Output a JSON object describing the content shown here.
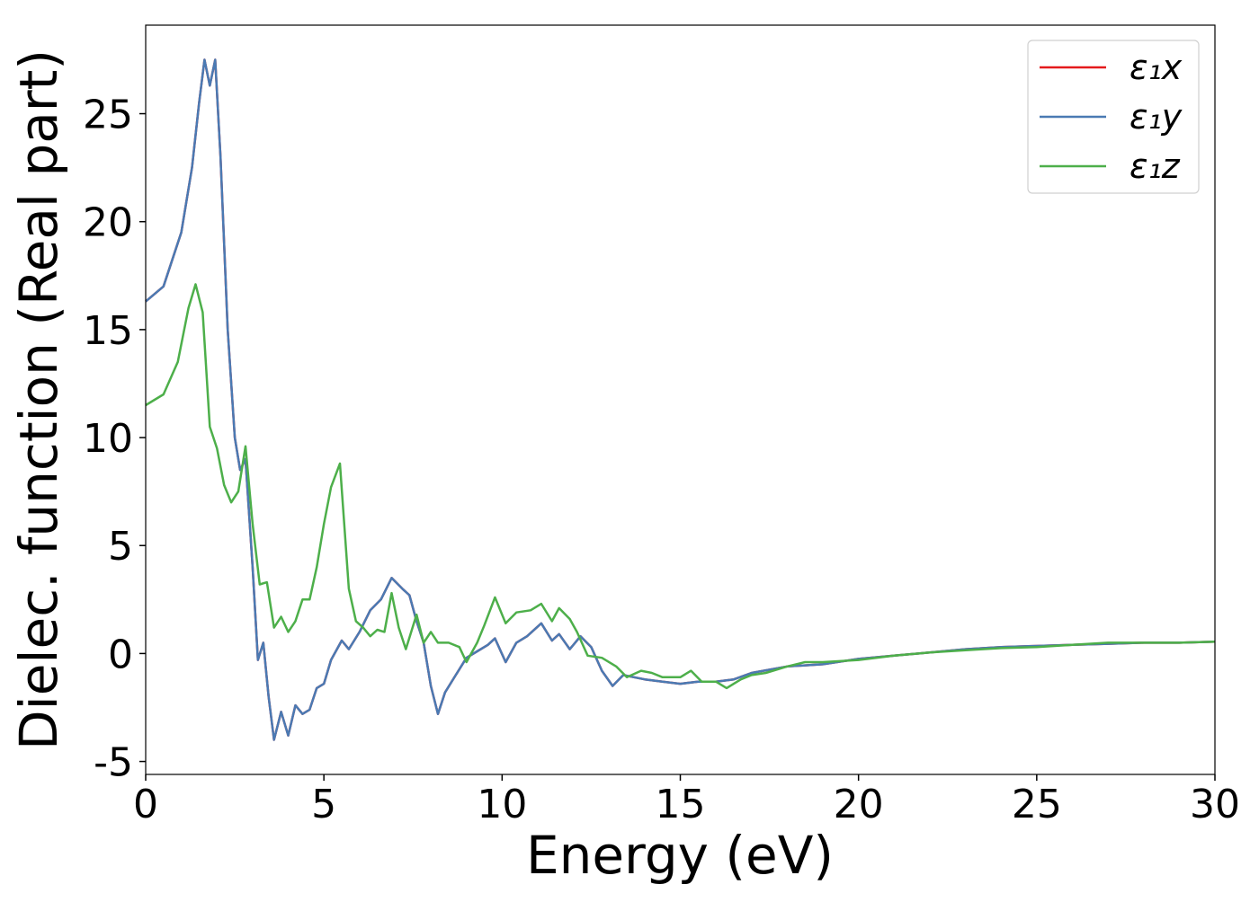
{
  "chart_data": {
    "type": "line",
    "xlabel": "Energy (eV)",
    "ylabel": "Dielec. function (Real part)",
    "xlim": [
      0,
      30
    ],
    "ylim": [
      -5.6,
      29.1
    ],
    "xticks": [
      0,
      5,
      10,
      15,
      20,
      25,
      30
    ],
    "yticks": [
      -5,
      0,
      5,
      10,
      15,
      20,
      25
    ],
    "legend": "upper right",
    "series": [
      {
        "name": "ε₁x",
        "color": "#e41a1c",
        "x": [
          0,
          0.5,
          1.0,
          1.3,
          1.5,
          1.65,
          1.8,
          1.95,
          2.1,
          2.3,
          2.5,
          2.65,
          2.8,
          3.0,
          3.15,
          3.3,
          3.45,
          3.6,
          3.8,
          4.0,
          4.2,
          4.4,
          4.6,
          4.8,
          5.0,
          5.2,
          5.5,
          5.7,
          6.0,
          6.3,
          6.6,
          6.9,
          7.2,
          7.4,
          7.6,
          7.8,
          8.0,
          8.2,
          8.4,
          8.7,
          9.0,
          9.3,
          9.6,
          9.8,
          10.1,
          10.4,
          10.7,
          11.1,
          11.4,
          11.6,
          11.9,
          12.2,
          12.5,
          12.8,
          13.1,
          13.4,
          13.7,
          14.0,
          14.5,
          15,
          15.5,
          16,
          16.5,
          17,
          18,
          19,
          20,
          21,
          22,
          23,
          24,
          25,
          26,
          27,
          28,
          29,
          30
        ],
        "values": [
          16.3,
          17,
          19.5,
          22.5,
          25.5,
          27.5,
          26.3,
          27.5,
          23,
          15,
          10,
          8.5,
          9,
          4,
          -0.3,
          0.5,
          -2,
          -4,
          -2.7,
          -3.8,
          -2.4,
          -2.8,
          -2.6,
          -1.6,
          -1.4,
          -0.3,
          0.6,
          0.2,
          1,
          2,
          2.5,
          3.5,
          3,
          2.7,
          1.5,
          0.5,
          -1.5,
          -2.8,
          -1.8,
          -1,
          -0.2,
          0.1,
          0.4,
          0.7,
          -0.4,
          0.5,
          0.8,
          1.4,
          0.6,
          0.9,
          0.2,
          0.8,
          0.3,
          -0.8,
          -1.5,
          -1,
          -1.1,
          -1.2,
          -1.3,
          -1.4,
          -1.3,
          -1.3,
          -1.2,
          -0.9,
          -0.6,
          -0.5,
          -0.25,
          -0.1,
          0.05,
          0.2,
          0.3,
          0.35,
          0.4,
          0.45,
          0.5,
          0.5,
          0.55
        ]
      },
      {
        "name": "ε₁y",
        "color": "#4a7ab3",
        "x": [
          0,
          0.5,
          1.0,
          1.3,
          1.5,
          1.65,
          1.8,
          1.95,
          2.1,
          2.3,
          2.5,
          2.65,
          2.8,
          3.0,
          3.15,
          3.3,
          3.45,
          3.6,
          3.8,
          4.0,
          4.2,
          4.4,
          4.6,
          4.8,
          5.0,
          5.2,
          5.5,
          5.7,
          6.0,
          6.3,
          6.6,
          6.9,
          7.2,
          7.4,
          7.6,
          7.8,
          8.0,
          8.2,
          8.4,
          8.7,
          9.0,
          9.3,
          9.6,
          9.8,
          10.1,
          10.4,
          10.7,
          11.1,
          11.4,
          11.6,
          11.9,
          12.2,
          12.5,
          12.8,
          13.1,
          13.4,
          13.7,
          14.0,
          14.5,
          15,
          15.5,
          16,
          16.5,
          17,
          18,
          19,
          20,
          21,
          22,
          23,
          24,
          25,
          26,
          27,
          28,
          29,
          30
        ],
        "values": [
          16.3,
          17,
          19.5,
          22.5,
          25.5,
          27.5,
          26.3,
          27.5,
          23,
          15,
          10,
          8.5,
          9,
          4,
          -0.3,
          0.5,
          -2,
          -4,
          -2.7,
          -3.8,
          -2.4,
          -2.8,
          -2.6,
          -1.6,
          -1.4,
          -0.3,
          0.6,
          0.2,
          1,
          2,
          2.5,
          3.5,
          3,
          2.7,
          1.5,
          0.5,
          -1.5,
          -2.8,
          -1.8,
          -1,
          -0.2,
          0.1,
          0.4,
          0.7,
          -0.4,
          0.5,
          0.8,
          1.4,
          0.6,
          0.9,
          0.2,
          0.8,
          0.3,
          -0.8,
          -1.5,
          -1,
          -1.1,
          -1.2,
          -1.3,
          -1.4,
          -1.3,
          -1.3,
          -1.2,
          -0.9,
          -0.6,
          -0.5,
          -0.25,
          -0.1,
          0.05,
          0.2,
          0.3,
          0.35,
          0.4,
          0.45,
          0.5,
          0.5,
          0.55
        ]
      },
      {
        "name": "ε₁z",
        "color": "#4daf4a",
        "x": [
          0,
          0.5,
          0.9,
          1.2,
          1.4,
          1.6,
          1.8,
          2.0,
          2.2,
          2.4,
          2.6,
          2.8,
          3.0,
          3.2,
          3.4,
          3.6,
          3.8,
          4.0,
          4.2,
          4.4,
          4.6,
          4.8,
          5.0,
          5.2,
          5.45,
          5.7,
          5.9,
          6.1,
          6.3,
          6.5,
          6.7,
          6.9,
          7.1,
          7.3,
          7.6,
          7.8,
          8.0,
          8.2,
          8.5,
          8.8,
          9.0,
          9.3,
          9.5,
          9.8,
          10.1,
          10.4,
          10.8,
          11.1,
          11.4,
          11.6,
          11.9,
          12.1,
          12.4,
          12.8,
          13.2,
          13.5,
          13.9,
          14.2,
          14.5,
          15,
          15.3,
          15.6,
          16,
          16.3,
          16.7,
          17,
          17.4,
          18,
          18.5,
          19,
          20,
          21,
          22,
          23,
          24,
          25,
          26,
          27,
          28,
          29,
          30
        ],
        "values": [
          11.5,
          12,
          13.5,
          16,
          17.1,
          15.8,
          10.5,
          9.5,
          7.8,
          7,
          7.5,
          9.6,
          6,
          3.2,
          3.3,
          1.2,
          1.7,
          1.0,
          1.5,
          2.5,
          2.5,
          4,
          6,
          7.7,
          8.8,
          3,
          1.5,
          1.2,
          0.8,
          1.1,
          1,
          2.8,
          1.2,
          0.2,
          1.8,
          0.5,
          1,
          0.5,
          0.5,
          0.3,
          -0.4,
          0.5,
          1.3,
          2.6,
          1.4,
          1.9,
          2.0,
          2.3,
          1.5,
          2.1,
          1.6,
          1.0,
          -0.1,
          -0.2,
          -0.6,
          -1.1,
          -0.8,
          -0.9,
          -1.1,
          -1.1,
          -0.8,
          -1.3,
          -1.3,
          -1.6,
          -1.2,
          -1,
          -0.9,
          -0.6,
          -0.4,
          -0.4,
          -0.3,
          -0.1,
          0.05,
          0.15,
          0.25,
          0.3,
          0.4,
          0.5,
          0.5,
          0.5,
          0.55
        ]
      }
    ]
  }
}
